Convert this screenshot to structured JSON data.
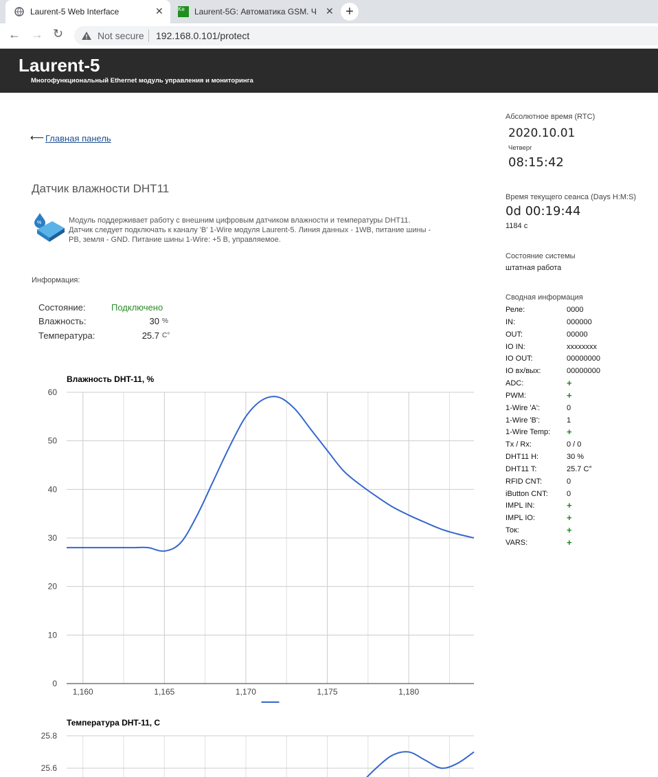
{
  "browser": {
    "tab1": "Laurent-5 Web Interface",
    "tab2_icon": "Ke",
    "tab2": "Laurent-5G: Автоматика GSM. Ч",
    "security": "Not secure",
    "url": "192.168.0.101/protect"
  },
  "header": {
    "title": "Laurent-5",
    "subtitle": "Многофункциональный Ethernet модуль управления и мониторинга"
  },
  "nav": {
    "arrow": "⟵",
    "link": "Главная панель"
  },
  "module": {
    "heading": "Датчик влажности DHT11",
    "description": "Модуль поддерживает работу с внешним цифровым датчиком влажности и температуры DHT11. Датчик следует подключать к каналу 'B' 1-Wire модуля Laurent-5. Линия данных - 1WB, питание шины - PB, земля - GND. Питание шины 1-Wire: +5 В, управляемое."
  },
  "info": {
    "title": "Информация:",
    "rows": [
      [
        "Состояние:",
        "Подключено",
        ""
      ],
      [
        "Влажность:",
        "30",
        "%"
      ],
      [
        "Температура:",
        "25.7",
        "C°"
      ]
    ]
  },
  "sidebar": {
    "rtc_label": "Абсолютное время (RTC)",
    "date": "2020.10.01",
    "weekday": "Четверг",
    "time": "08:15:42",
    "session_label": "Время текущего сеанса (Days H:M:S)",
    "session": "0d 00:19:44",
    "seconds": "1184 с",
    "state_label": "Состояние системы",
    "state": "штатная работа",
    "summary_label": "Сводная информация",
    "summary": [
      [
        "Реле:",
        "0000"
      ],
      [
        "IN:",
        "000000"
      ],
      [
        "OUT:",
        "00000"
      ],
      [
        "IO IN:",
        "xxxxxxxx"
      ],
      [
        "IO OUT:",
        "00000000"
      ],
      [
        "IO вх/вых:",
        "00000000"
      ],
      [
        "ADC:",
        "+"
      ],
      [
        "PWM:",
        "+"
      ],
      [
        "1-Wire 'A':",
        "0"
      ],
      [
        "1-Wire 'B':",
        "1"
      ],
      [
        "1-Wire Temp:",
        "+"
      ],
      [
        "Tx / Rx:",
        "0 / 0"
      ],
      [
        "DHT11 H:",
        "30 %"
      ],
      [
        "DHT11 T:",
        "25.7 C°"
      ],
      [
        "RFID CNT:",
        "0"
      ],
      [
        "iButton CNT:",
        "0"
      ],
      [
        "IMPL IN:",
        "+"
      ],
      [
        "IMPL IO:",
        "+"
      ],
      [
        "Ток:",
        "+"
      ],
      [
        "VARS:",
        "+"
      ]
    ]
  },
  "chart_data": [
    {
      "type": "line",
      "title": "Влажность DHT-11, %",
      "x": [
        1159,
        1160,
        1161,
        1162,
        1163,
        1164,
        1165,
        1166,
        1167,
        1168,
        1169,
        1170,
        1171,
        1172,
        1173,
        1174,
        1175,
        1176,
        1177,
        1178,
        1179,
        1180,
        1181,
        1182,
        1183,
        1184
      ],
      "series": [
        {
          "color": "#3366cc",
          "values": [
            28,
            28,
            28,
            28,
            28,
            28,
            27.3,
            29,
            34.6,
            41.7,
            48.8,
            55,
            58.4,
            59,
            56.6,
            52.3,
            48,
            43.8,
            41,
            38.6,
            36.4,
            34.7,
            33.2,
            31.8,
            30.8,
            30
          ]
        }
      ],
      "xlim": [
        1159,
        1184
      ],
      "ylim": [
        0,
        60
      ],
      "xticks": [
        {
          "value": 1160,
          "label": "1,160"
        },
        {
          "value": 1165,
          "label": "1,165"
        },
        {
          "value": 1170,
          "label": "1,170"
        },
        {
          "value": 1175,
          "label": "1,175"
        },
        {
          "value": 1180,
          "label": "1,180"
        }
      ],
      "xgrid": [
        1162.5,
        1167.5,
        1172.5,
        1177.5,
        1182.5
      ],
      "yticks": [
        0,
        10,
        20,
        30,
        40,
        50,
        60
      ],
      "grid": true
    },
    {
      "type": "line",
      "title": "Температура DHT-11, C",
      "x": [
        1177,
        1178,
        1179,
        1180,
        1181,
        1182,
        1183,
        1184
      ],
      "series": [
        {
          "color": "#3366cc",
          "values": [
            25.5,
            25.6,
            25.68,
            25.7,
            25.65,
            25.6,
            25.63,
            25.7
          ]
        }
      ],
      "xlim": [
        1159,
        1184
      ],
      "ylim": [
        24,
        25.8
      ],
      "xgrid": [
        1160,
        1162.5,
        1165,
        1167.5,
        1170,
        1172.5,
        1175,
        1177.5,
        1180,
        1182.5
      ],
      "yticks": [
        25.6,
        25.8
      ],
      "grid": true
    }
  ]
}
